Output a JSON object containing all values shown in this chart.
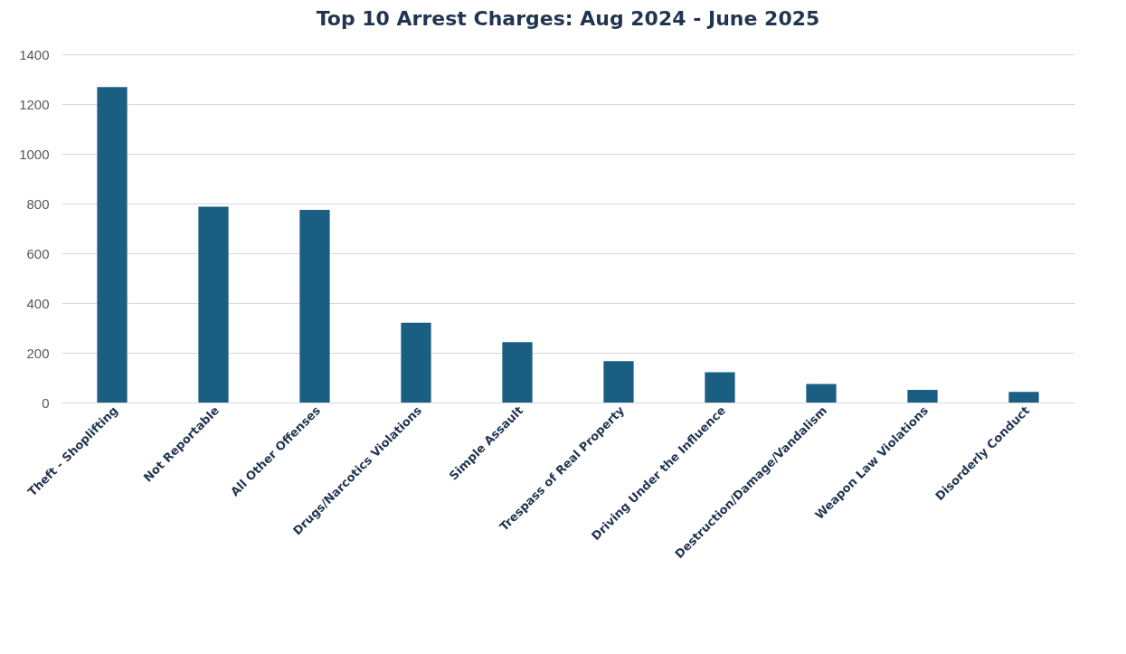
{
  "chart_data": {
    "type": "bar",
    "title": "Top 10 Arrest Charges: Aug 2024 - June 2025",
    "categories": [
      "Theft - Shoplifting",
      "Not Reportable",
      "All Other Offenses",
      "Drugs/Narcotics Violations",
      "Simple Assault",
      "Trespass of Real Property",
      "Driving Under the Influence",
      "Destruction/Damage/Vandalism",
      "Weapon Law Violations",
      "Disorderly Conduct"
    ],
    "values": [
      1268,
      787,
      775,
      321,
      243,
      166,
      122,
      75,
      51,
      43
    ],
    "color": "#1a5e82",
    "ylim": [
      0,
      1400
    ],
    "yticks": [
      0,
      200,
      400,
      600,
      800,
      1000,
      1200,
      1400
    ],
    "grid": "y"
  }
}
